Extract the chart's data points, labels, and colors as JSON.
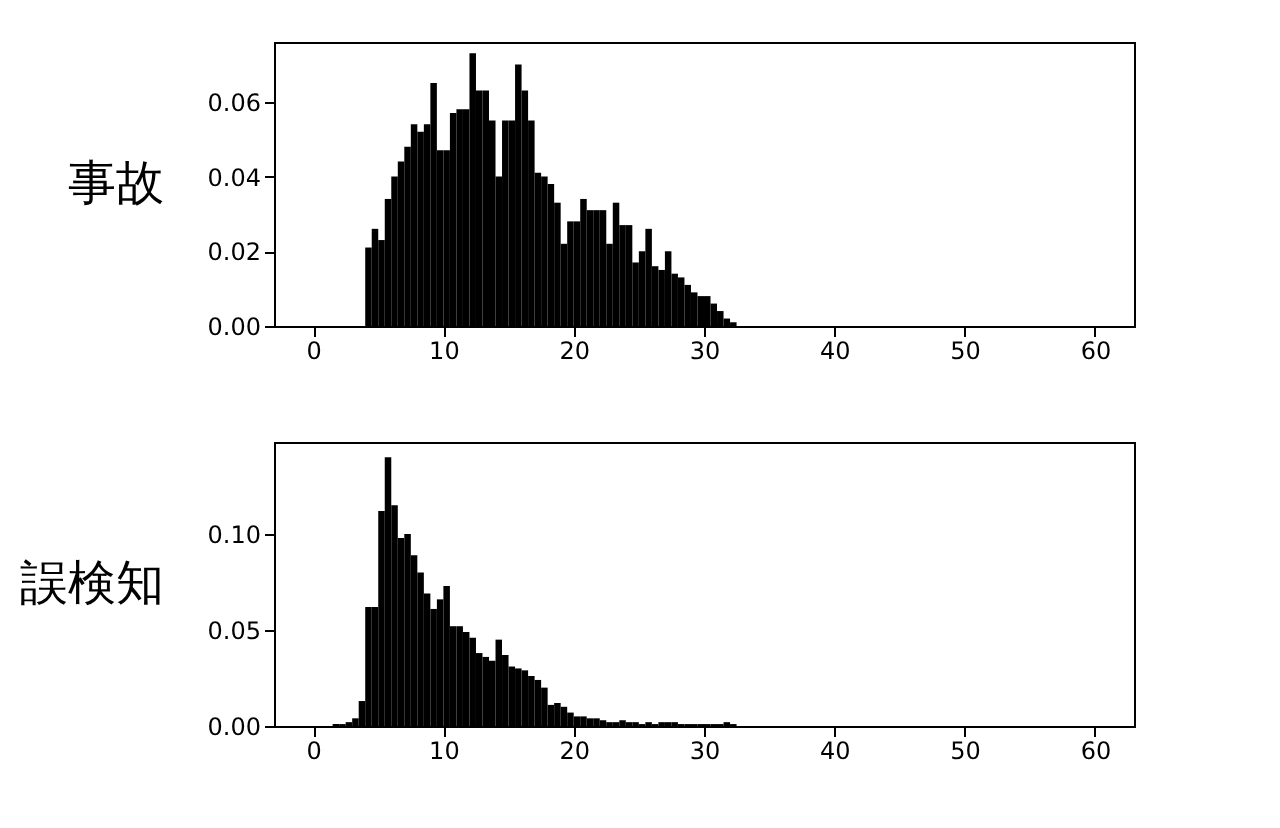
{
  "chart_data": [
    {
      "type": "histogram",
      "ylabel": "事故",
      "color": "#000000",
      "grid": false,
      "bins": [
        4,
        4.5,
        5,
        5.5,
        6,
        6.5,
        7,
        7.5,
        8,
        8.5,
        9,
        9.5,
        10,
        10.5,
        11,
        11.5,
        12,
        12.5,
        13,
        13.5,
        14,
        14.5,
        15,
        15.5,
        16,
        16.5,
        17,
        17.5,
        18,
        18.5,
        19,
        19.5,
        20,
        20.5,
        21,
        21.5,
        22,
        22.5,
        23,
        23.5,
        24,
        24.5,
        25,
        25.5,
        26,
        26.5,
        27,
        27.5,
        28,
        28.5,
        29,
        29.5,
        30,
        30.5,
        31,
        31.5,
        32,
        32.5
      ],
      "values": [
        0.021,
        0.026,
        0.023,
        0.034,
        0.04,
        0.044,
        0.048,
        0.054,
        0.052,
        0.054,
        0.065,
        0.047,
        0.047,
        0.057,
        0.058,
        0.058,
        0.073,
        0.063,
        0.063,
        0.055,
        0.04,
        0.055,
        0.055,
        0.07,
        0.063,
        0.055,
        0.041,
        0.04,
        0.038,
        0.033,
        0.022,
        0.028,
        0.028,
        0.034,
        0.031,
        0.031,
        0.031,
        0.022,
        0.033,
        0.027,
        0.027,
        0.017,
        0.02,
        0.026,
        0.016,
        0.015,
        0.02,
        0.014,
        0.013,
        0.011,
        0.009,
        0.008,
        0.008,
        0.006,
        0.004,
        0.002,
        0.001
      ],
      "xlim": [
        -3,
        63
      ],
      "xticks": [
        0,
        10,
        20,
        30,
        40,
        50,
        60
      ],
      "ylim": [
        0,
        0.076
      ],
      "yticks": [
        {
          "value": 0,
          "label": "0.00"
        },
        {
          "value": 0.02,
          "label": "0.02"
        },
        {
          "value": 0.04,
          "label": "0.04"
        },
        {
          "value": 0.06,
          "label": "0.06"
        }
      ]
    },
    {
      "type": "histogram",
      "ylabel": "誤検知",
      "color": "#000000",
      "grid": false,
      "bins": [
        1.5,
        2,
        2.5,
        3,
        3.5,
        4,
        4.5,
        5,
        5.5,
        6,
        6.5,
        7,
        7.5,
        8,
        8.5,
        9,
        9.5,
        10,
        10.5,
        11,
        11.5,
        12,
        12.5,
        13,
        13.5,
        14,
        14.5,
        15,
        15.5,
        16,
        16.5,
        17,
        17.5,
        18,
        18.5,
        19,
        19.5,
        20,
        20.5,
        21,
        21.5,
        22,
        22.5,
        23,
        23.5,
        24,
        24.5,
        25,
        25.5,
        26,
        26.5,
        27,
        27.5,
        28,
        28.5,
        29,
        29.5,
        30,
        30.5,
        31,
        31.5,
        32,
        32.5
      ],
      "values": [
        0.001,
        0.001,
        0.002,
        0.004,
        0.013,
        0.062,
        0.062,
        0.112,
        0.14,
        0.115,
        0.098,
        0.1,
        0.089,
        0.08,
        0.069,
        0.061,
        0.066,
        0.073,
        0.052,
        0.052,
        0.049,
        0.046,
        0.038,
        0.036,
        0.034,
        0.045,
        0.037,
        0.031,
        0.03,
        0.029,
        0.026,
        0.024,
        0.02,
        0.011,
        0.012,
        0.01,
        0.007,
        0.005,
        0.005,
        0.004,
        0.004,
        0.003,
        0.002,
        0.002,
        0.003,
        0.002,
        0.002,
        0.001,
        0.002,
        0.001,
        0.002,
        0.002,
        0.002,
        0.001,
        0.001,
        0.001,
        0.001,
        0.001,
        0.001,
        0.001,
        0.002,
        0.001
      ],
      "xlim": [
        -3,
        63
      ],
      "xticks": [
        0,
        10,
        20,
        30,
        40,
        50,
        60
      ],
      "ylim": [
        0,
        0.148
      ],
      "yticks": [
        {
          "value": 0,
          "label": "0.00"
        },
        {
          "value": 0.05,
          "label": "0.05"
        },
        {
          "value": 0.1,
          "label": "0.10"
        }
      ]
    }
  ]
}
